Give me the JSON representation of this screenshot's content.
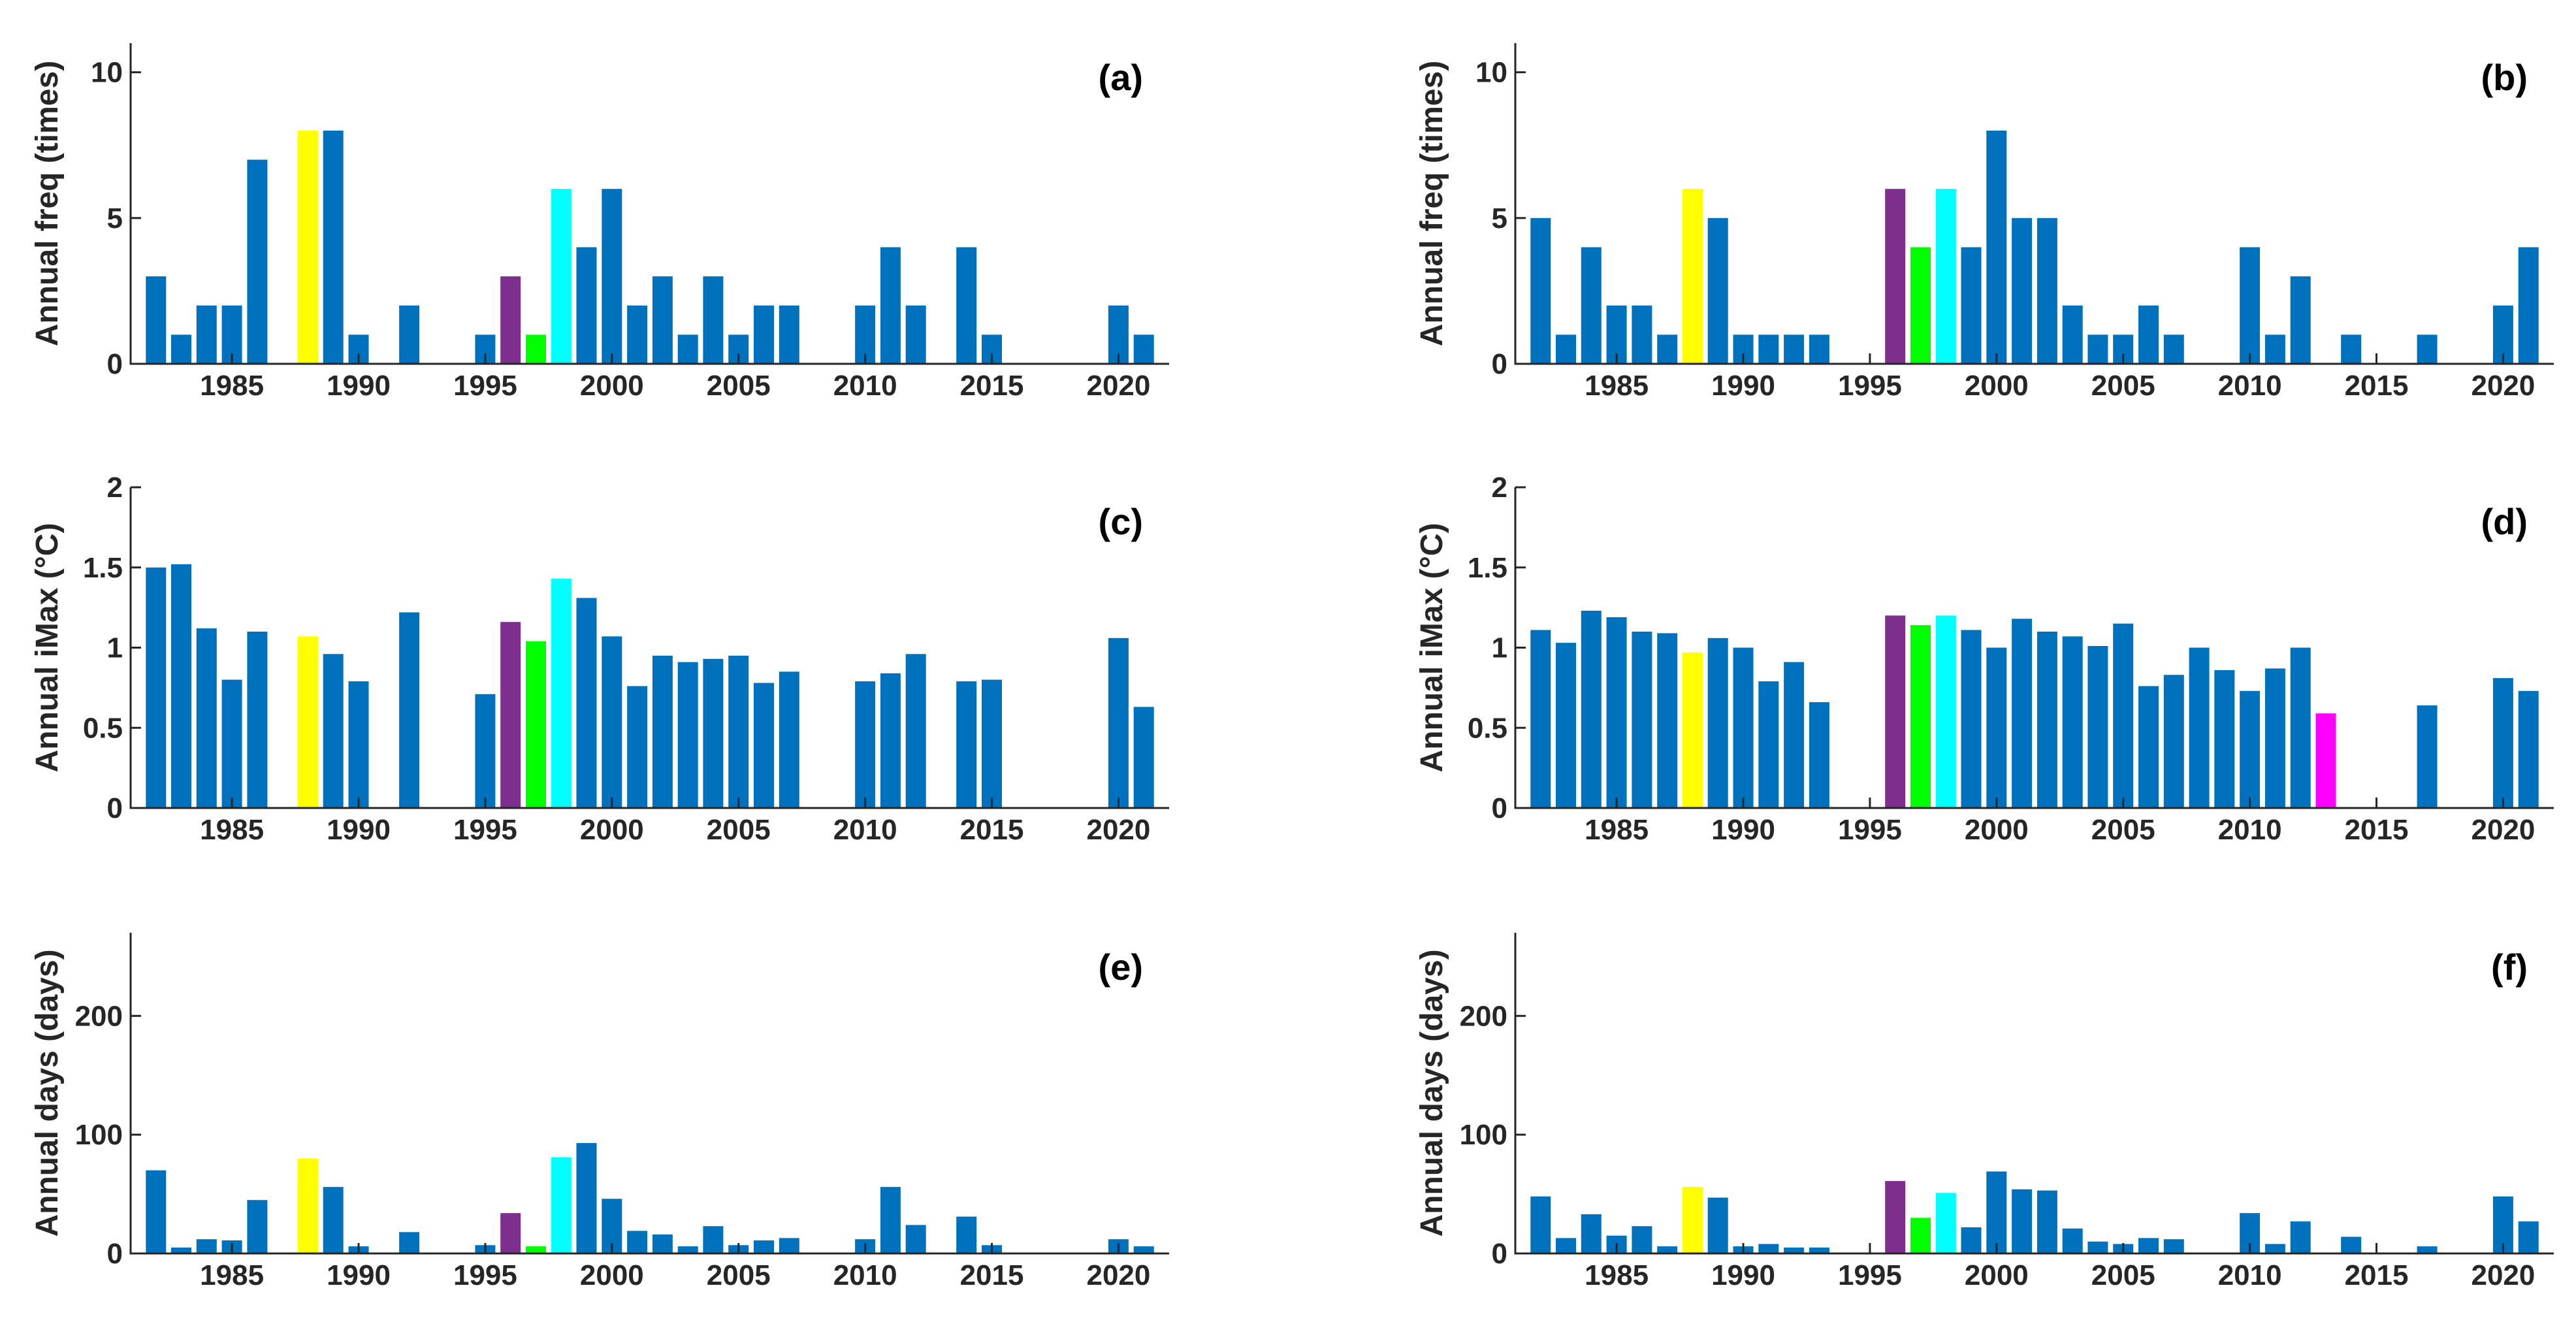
{
  "figure": {
    "colors": {
      "default": "#0072BD",
      "1988": "#FFFF00",
      "1996": "#7E2F8E",
      "1997": "#00FF00",
      "1998": "#00FFFF",
      "2013": "#FF00FF"
    }
  },
  "chart_data": [
    {
      "type": "bar",
      "panel_label": "(a)",
      "ylabel": "Annual freq (times)",
      "xlim": [
        1981,
        2022
      ],
      "ylim": [
        0,
        11
      ],
      "yticks": [
        0,
        5,
        10
      ],
      "ytick_labels": [
        "0",
        "5",
        "10"
      ],
      "xticks": [
        1985,
        1990,
        1995,
        2000,
        2005,
        2010,
        2015,
        2020
      ],
      "xtick_labels": [
        "1985",
        "1990",
        "1995",
        "2000",
        "2005",
        "2010",
        "2015",
        "2020"
      ],
      "years": [
        1982,
        1983,
        1984,
        1985,
        1986,
        1987,
        1988,
        1989,
        1990,
        1991,
        1992,
        1993,
        1994,
        1995,
        1996,
        1997,
        1998,
        1999,
        2000,
        2001,
        2002,
        2003,
        2004,
        2005,
        2006,
        2007,
        2008,
        2009,
        2010,
        2011,
        2012,
        2013,
        2014,
        2015,
        2016,
        2017,
        2018,
        2019,
        2020,
        2021
      ],
      "values": [
        3,
        1,
        2,
        2,
        7,
        0,
        8,
        8,
        1,
        0,
        2,
        0,
        0,
        1,
        3,
        1,
        6,
        4,
        6,
        2,
        3,
        1,
        3,
        1,
        2,
        2,
        0,
        0,
        2,
        4,
        2,
        0,
        4,
        1,
        0,
        0,
        0,
        0,
        2,
        1
      ]
    },
    {
      "type": "bar",
      "panel_label": "(b)",
      "ylabel": "Annual freq (times)",
      "xlim": [
        1981,
        2022
      ],
      "ylim": [
        0,
        11
      ],
      "yticks": [
        0,
        5,
        10
      ],
      "ytick_labels": [
        "0",
        "5",
        "10"
      ],
      "xticks": [
        1985,
        1990,
        1995,
        2000,
        2005,
        2010,
        2015,
        2020
      ],
      "xtick_labels": [
        "1985",
        "1990",
        "1995",
        "2000",
        "2005",
        "2010",
        "2015",
        "2020"
      ],
      "years": [
        1982,
        1983,
        1984,
        1985,
        1986,
        1987,
        1988,
        1989,
        1990,
        1991,
        1992,
        1993,
        1994,
        1995,
        1996,
        1997,
        1998,
        1999,
        2000,
        2001,
        2002,
        2003,
        2004,
        2005,
        2006,
        2007,
        2008,
        2009,
        2010,
        2011,
        2012,
        2013,
        2014,
        2015,
        2016,
        2017,
        2018,
        2019,
        2020,
        2021
      ],
      "values": [
        5,
        1,
        4,
        2,
        2,
        1,
        6,
        5,
        1,
        1,
        1,
        1,
        0,
        0,
        6,
        4,
        6,
        4,
        8,
        5,
        5,
        2,
        1,
        1,
        2,
        1,
        0,
        0,
        4,
        1,
        3,
        0,
        1,
        0,
        0,
        1,
        0,
        0,
        2,
        4
      ]
    },
    {
      "type": "bar",
      "panel_label": "(c)",
      "ylabel": "Annual iMax (°C)",
      "xlim": [
        1981,
        2022
      ],
      "ylim": [
        0,
        2
      ],
      "yticks": [
        0,
        0.5,
        1,
        1.5,
        2
      ],
      "ytick_labels": [
        "0",
        "0.5",
        "1",
        "1.5",
        "2"
      ],
      "xticks": [
        1985,
        1990,
        1995,
        2000,
        2005,
        2010,
        2015,
        2020
      ],
      "xtick_labels": [
        "1985",
        "1990",
        "1995",
        "2000",
        "2005",
        "2010",
        "2015",
        "2020"
      ],
      "years": [
        1982,
        1983,
        1984,
        1985,
        1986,
        1987,
        1988,
        1989,
        1990,
        1991,
        1992,
        1993,
        1994,
        1995,
        1996,
        1997,
        1998,
        1999,
        2000,
        2001,
        2002,
        2003,
        2004,
        2005,
        2006,
        2007,
        2008,
        2009,
        2010,
        2011,
        2012,
        2013,
        2014,
        2015,
        2016,
        2017,
        2018,
        2019,
        2020,
        2021
      ],
      "values": [
        1.5,
        1.52,
        1.12,
        0.8,
        1.1,
        0,
        1.07,
        0.96,
        0.79,
        0,
        1.22,
        0,
        0,
        0.71,
        1.16,
        1.04,
        1.43,
        1.31,
        1.07,
        0.76,
        0.95,
        0.91,
        0.93,
        0.95,
        0.78,
        0.85,
        0,
        0,
        0.79,
        0.84,
        0.96,
        0,
        0.79,
        0.8,
        0,
        0,
        0,
        0,
        1.06,
        0.63
      ]
    },
    {
      "type": "bar",
      "panel_label": "(d)",
      "ylabel": "Annual iMax (°C)",
      "xlim": [
        1981,
        2022
      ],
      "ylim": [
        0,
        2
      ],
      "yticks": [
        0,
        0.5,
        1,
        1.5,
        2
      ],
      "ytick_labels": [
        "0",
        "0.5",
        "1",
        "1.5",
        "2"
      ],
      "xticks": [
        1985,
        1990,
        1995,
        2000,
        2005,
        2010,
        2015,
        2020
      ],
      "xtick_labels": [
        "1985",
        "1990",
        "1995",
        "2000",
        "2005",
        "2010",
        "2015",
        "2020"
      ],
      "years": [
        1982,
        1983,
        1984,
        1985,
        1986,
        1987,
        1988,
        1989,
        1990,
        1991,
        1992,
        1993,
        1994,
        1995,
        1996,
        1997,
        1998,
        1999,
        2000,
        2001,
        2002,
        2003,
        2004,
        2005,
        2006,
        2007,
        2008,
        2009,
        2010,
        2011,
        2012,
        2013,
        2014,
        2015,
        2016,
        2017,
        2018,
        2019,
        2020,
        2021
      ],
      "values": [
        1.11,
        1.03,
        1.23,
        1.19,
        1.1,
        1.09,
        0.97,
        1.06,
        1.0,
        0.79,
        0.91,
        0.66,
        0,
        0,
        1.2,
        1.14,
        1.2,
        1.11,
        1.0,
        1.18,
        1.1,
        1.07,
        1.01,
        1.15,
        0.76,
        0.83,
        1.0,
        0.86,
        0.73,
        0.87,
        1.0,
        0.59,
        0,
        0,
        0,
        0.64,
        0,
        0,
        0.81,
        0.73
      ]
    },
    {
      "type": "bar",
      "panel_label": "(e)",
      "ylabel": "Annual days (days)",
      "xlim": [
        1981,
        2022
      ],
      "ylim": [
        0,
        270
      ],
      "yticks": [
        0,
        100,
        200
      ],
      "ytick_labels": [
        "0",
        "100",
        "200"
      ],
      "xticks": [
        1985,
        1990,
        1995,
        2000,
        2005,
        2010,
        2015,
        2020
      ],
      "xtick_labels": [
        "1985",
        "1990",
        "1995",
        "2000",
        "2005",
        "2010",
        "2015",
        "2020"
      ],
      "years": [
        1982,
        1983,
        1984,
        1985,
        1986,
        1987,
        1988,
        1989,
        1990,
        1991,
        1992,
        1993,
        1994,
        1995,
        1996,
        1997,
        1998,
        1999,
        2000,
        2001,
        2002,
        2003,
        2004,
        2005,
        2006,
        2007,
        2008,
        2009,
        2010,
        2011,
        2012,
        2013,
        2014,
        2015,
        2016,
        2017,
        2018,
        2019,
        2020,
        2021
      ],
      "values": [
        70,
        5,
        12,
        11,
        45,
        0,
        80,
        56,
        6,
        0,
        18,
        0,
        0,
        7,
        34,
        6,
        81,
        93,
        46,
        19,
        16,
        6,
        23,
        7,
        11,
        13,
        0,
        0,
        12,
        56,
        24,
        0,
        31,
        7,
        0,
        0,
        0,
        0,
        12,
        6
      ]
    },
    {
      "type": "bar",
      "panel_label": "(f)",
      "ylabel": "Annual days (days)",
      "xlim": [
        1981,
        2022
      ],
      "ylim": [
        0,
        270
      ],
      "yticks": [
        0,
        100,
        200
      ],
      "ytick_labels": [
        "0",
        "100",
        "200"
      ],
      "xticks": [
        1985,
        1990,
        1995,
        2000,
        2005,
        2010,
        2015,
        2020
      ],
      "xtick_labels": [
        "1985",
        "1990",
        "1995",
        "2000",
        "2005",
        "2010",
        "2015",
        "2020"
      ],
      "years": [
        1982,
        1983,
        1984,
        1985,
        1986,
        1987,
        1988,
        1989,
        1990,
        1991,
        1992,
        1993,
        1994,
        1995,
        1996,
        1997,
        1998,
        1999,
        2000,
        2001,
        2002,
        2003,
        2004,
        2005,
        2006,
        2007,
        2008,
        2009,
        2010,
        2011,
        2012,
        2013,
        2014,
        2015,
        2016,
        2017,
        2018,
        2019,
        2020,
        2021
      ],
      "values": [
        48,
        13,
        33,
        15,
        23,
        6,
        56,
        47,
        6,
        8,
        5,
        5,
        0,
        0,
        61,
        30,
        51,
        22,
        69,
        54,
        53,
        21,
        10,
        8,
        13,
        12,
        0,
        0,
        34,
        8,
        27,
        0,
        14,
        0,
        0,
        6,
        0,
        0,
        48,
        27
      ]
    }
  ]
}
